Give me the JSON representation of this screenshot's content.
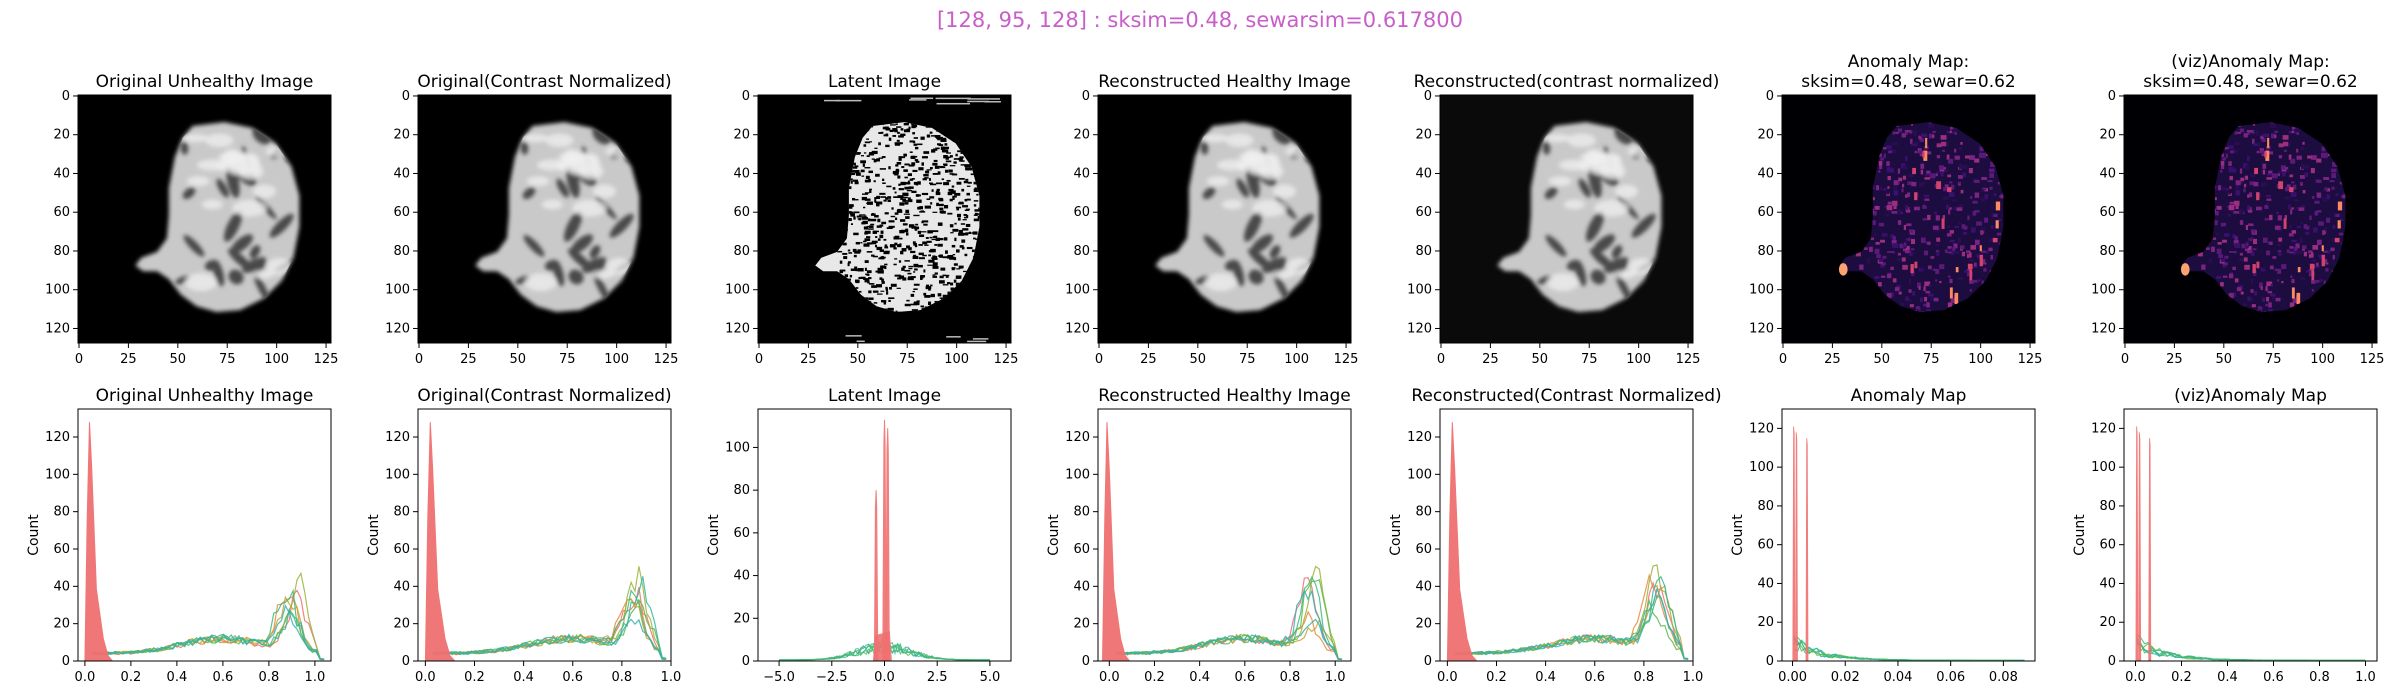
{
  "suptitle": "[128, 95, 128] : sksim=0.48, sewarsim=0.617800",
  "colors": {
    "suptitle": "#c85ec9",
    "histogram_series": [
      "#f07070",
      "#e58a3f",
      "#c9a137",
      "#9bb33a",
      "#5cb94a",
      "#3aba78",
      "#35b59c",
      "#33b0b0",
      "#37a8c8"
    ]
  },
  "chart_data": [
    {
      "type": "image",
      "title": "Original Unhealthy Image",
      "render": "brain-grayscale",
      "background": "#000000",
      "xticks": [
        "0",
        "25",
        "50",
        "75",
        "100",
        "125"
      ],
      "yticks": [
        "0",
        "20",
        "40",
        "60",
        "80",
        "100",
        "120"
      ]
    },
    {
      "type": "image",
      "title": "Original(Contrast Normalized)",
      "render": "brain-grayscale",
      "background": "#000000",
      "xticks": [
        "0",
        "25",
        "50",
        "75",
        "100",
        "125"
      ],
      "yticks": [
        "0",
        "20",
        "40",
        "60",
        "80",
        "100",
        "120"
      ]
    },
    {
      "type": "image",
      "title": "Latent Image",
      "render": "latent-noise",
      "background": "#000000",
      "xticks": [
        "0",
        "25",
        "50",
        "75",
        "100",
        "125"
      ],
      "yticks": [
        "0",
        "20",
        "40",
        "60",
        "80",
        "100",
        "120"
      ]
    },
    {
      "type": "image",
      "title": "Reconstructed Healthy Image",
      "render": "brain-grayscale",
      "background": "#000000",
      "xticks": [
        "0",
        "25",
        "50",
        "75",
        "100",
        "125"
      ],
      "yticks": [
        "0",
        "20",
        "40",
        "60",
        "80",
        "100",
        "120"
      ]
    },
    {
      "type": "image",
      "title": "Reconstructed(contrast normalized)",
      "render": "brain-grayscale",
      "background": "#0a0a0a",
      "xticks": [
        "0",
        "25",
        "50",
        "75",
        "100",
        "125"
      ],
      "yticks": [
        "0",
        "20",
        "40",
        "60",
        "80",
        "100",
        "120"
      ]
    },
    {
      "type": "image",
      "title": "Anomaly Map:\nsksim=0.48, sewar=0.62",
      "render": "anomaly-magma",
      "background": "#000004",
      "xticks": [
        "0",
        "25",
        "50",
        "75",
        "100",
        "125"
      ],
      "yticks": [
        "0",
        "20",
        "40",
        "60",
        "80",
        "100",
        "120"
      ]
    },
    {
      "type": "image",
      "title": "(viz)Anomaly Map:\nsksim=0.48, sewar=0.62",
      "render": "anomaly-magma",
      "background": "#000004",
      "xticks": [
        "0",
        "25",
        "50",
        "75",
        "100",
        "125"
      ],
      "yticks": [
        "0",
        "20",
        "40",
        "60",
        "80",
        "100",
        "120"
      ]
    },
    {
      "type": "histogram",
      "title": "Original Unhealthy Image",
      "ylabel": "Count",
      "xlim": [
        -0.03,
        1.07
      ],
      "ylim": [
        0,
        135
      ],
      "xticks": [
        0.0,
        0.2,
        0.4,
        0.6,
        0.8,
        1.0
      ],
      "xtick_labels": [
        "0.0",
        "0.2",
        "0.4",
        "0.6",
        "0.8",
        "1.0"
      ],
      "yticks": [
        0,
        20,
        40,
        60,
        80,
        100,
        120
      ],
      "ytick_labels": [
        "0",
        "20",
        "40",
        "60",
        "80",
        "100",
        "120"
      ],
      "peak_spike": {
        "x": 0.02,
        "y": 128
      },
      "main_peak": {
        "x": 0.9,
        "y": 38
      },
      "x_end": 1.04
    },
    {
      "type": "histogram",
      "title": "Original(Contrast Normalized)",
      "ylabel": "Count",
      "xlim": [
        -0.03,
        1.0
      ],
      "ylim": [
        0,
        135
      ],
      "xticks": [
        0.0,
        0.2,
        0.4,
        0.6,
        0.8,
        1.0
      ],
      "xtick_labels": [
        "0.0",
        "0.2",
        "0.4",
        "0.6",
        "0.8",
        "1.0"
      ],
      "yticks": [
        0,
        20,
        40,
        60,
        80,
        100,
        120
      ],
      "ytick_labels": [
        "0",
        "20",
        "40",
        "60",
        "80",
        "100",
        "120"
      ],
      "peak_spike": {
        "x": 0.02,
        "y": 128
      },
      "main_peak": {
        "x": 0.86,
        "y": 38
      },
      "x_end": 0.98
    },
    {
      "type": "histogram",
      "title": "Latent Image",
      "ylabel": "Count",
      "xlim": [
        -6.0,
        6.0
      ],
      "ylim": [
        0,
        118
      ],
      "xticks": [
        -5.0,
        -2.5,
        0.0,
        2.5,
        5.0
      ],
      "xtick_labels": [
        "−5.0",
        "−2.5",
        "0.0",
        "2.5",
        "5.0"
      ],
      "yticks": [
        0,
        20,
        40,
        60,
        80,
        100
      ],
      "ytick_labels": [
        "0",
        "20",
        "40",
        "60",
        "80",
        "100"
      ],
      "latent_peaks": [
        {
          "x": -0.4,
          "y": 80
        },
        {
          "x": 0.0,
          "y": 113
        },
        {
          "x": 0.15,
          "y": 109
        }
      ],
      "x_start": -5.0,
      "x_end": 5.0
    },
    {
      "type": "histogram",
      "title": "Reconstructed Healthy Image",
      "ylabel": "Count",
      "xlim": [
        -0.05,
        1.07
      ],
      "ylim": [
        0,
        135
      ],
      "xticks": [
        0.0,
        0.2,
        0.4,
        0.6,
        0.8,
        1.0
      ],
      "xtick_labels": [
        "0.0",
        "0.2",
        "0.4",
        "0.6",
        "0.8",
        "1.0"
      ],
      "yticks": [
        0,
        20,
        40,
        60,
        80,
        100,
        120
      ],
      "ytick_labels": [
        "0",
        "20",
        "40",
        "60",
        "80",
        "100",
        "120"
      ],
      "peak_spike": {
        "x": -0.01,
        "y": 128
      },
      "main_peak": {
        "x": 0.9,
        "y": 42
      },
      "x_end": 1.03
    },
    {
      "type": "histogram",
      "title": "Reconstructed(Contrast Normalized)",
      "ylabel": "Count",
      "xlim": [
        -0.03,
        1.0
      ],
      "ylim": [
        0,
        135
      ],
      "xticks": [
        0.0,
        0.2,
        0.4,
        0.6,
        0.8,
        1.0
      ],
      "xtick_labels": [
        "0.0",
        "0.2",
        "0.4",
        "0.6",
        "0.8",
        "1.0"
      ],
      "yticks": [
        0,
        20,
        40,
        60,
        80,
        100,
        120
      ],
      "ytick_labels": [
        "0",
        "20",
        "40",
        "60",
        "80",
        "100",
        "120"
      ],
      "peak_spike": {
        "x": 0.02,
        "y": 128
      },
      "main_peak": {
        "x": 0.86,
        "y": 42
      },
      "x_end": 0.98
    },
    {
      "type": "histogram",
      "title": "Anomaly Map",
      "ylabel": "Count",
      "xlim": [
        -0.004,
        0.092
      ],
      "ylim": [
        0,
        130
      ],
      "xticks": [
        0.0,
        0.02,
        0.04,
        0.06,
        0.08
      ],
      "xtick_labels": [
        "0.00",
        "0.02",
        "0.04",
        "0.06",
        "0.08"
      ],
      "yticks": [
        0,
        20,
        40,
        60,
        80,
        100,
        120
      ],
      "ytick_labels": [
        "0",
        "20",
        "40",
        "60",
        "80",
        "100",
        "120"
      ],
      "anomaly_spikes": [
        {
          "x": 0.0005,
          "y": 121
        },
        {
          "x": 0.0015,
          "y": 118
        },
        {
          "x": 0.0055,
          "y": 115
        }
      ],
      "x_end": 0.088
    },
    {
      "type": "histogram",
      "title": "(viz)Anomaly Map",
      "ylabel": "Count",
      "xlim": [
        -0.05,
        1.05
      ],
      "ylim": [
        0,
        130
      ],
      "xticks": [
        0.0,
        0.2,
        0.4,
        0.6,
        0.8,
        1.0
      ],
      "xtick_labels": [
        "0.0",
        "0.2",
        "0.4",
        "0.6",
        "0.8",
        "1.0"
      ],
      "yticks": [
        0,
        20,
        40,
        60,
        80,
        100,
        120
      ],
      "ytick_labels": [
        "0",
        "20",
        "40",
        "60",
        "80",
        "100",
        "120"
      ],
      "anomaly_spikes": [
        {
          "x": 0.006,
          "y": 121
        },
        {
          "x": 0.018,
          "y": 118
        },
        {
          "x": 0.062,
          "y": 115
        }
      ],
      "x_end": 1.0
    }
  ]
}
